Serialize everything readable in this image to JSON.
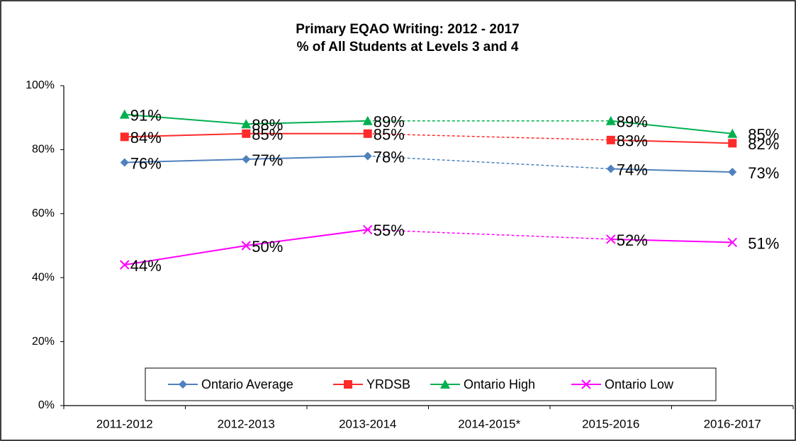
{
  "chart_data": {
    "type": "line",
    "title": "Primary EQAO Writing: 2012 - 2017",
    "subtitle": "% of All Students at Levels 3 and 4",
    "categories": [
      "2011-2012",
      "2012-2013",
      "2013-2014",
      "2014-2015*",
      "2015-2016",
      "2016-2017"
    ],
    "series": [
      {
        "name": "Ontario Average",
        "color": "#4f81bd",
        "marker": "diamond",
        "values": [
          76,
          77,
          78,
          null,
          74,
          73
        ],
        "value_labels": [
          "76%",
          "77%",
          "78%",
          null,
          "74%",
          "73%"
        ]
      },
      {
        "name": "YRDSB",
        "color": "#ff2a2a",
        "marker": "square",
        "values": [
          84,
          85,
          85,
          null,
          83,
          82
        ],
        "value_labels": [
          "84%",
          "85%",
          "85%",
          null,
          "83%",
          "82%"
        ]
      },
      {
        "name": "Ontario High",
        "color": "#00b050",
        "marker": "triangle",
        "values": [
          91,
          88,
          89,
          null,
          89,
          85
        ],
        "value_labels": [
          "91%",
          "88%",
          "89%",
          null,
          "89%",
          "85%"
        ]
      },
      {
        "name": "Ontario Low",
        "color": "#ff00ff",
        "marker": "x",
        "values": [
          44,
          50,
          55,
          null,
          52,
          51
        ],
        "value_labels": [
          "44%",
          "50%",
          "55%",
          null,
          "52%",
          "51%"
        ]
      }
    ],
    "ylim": [
      0,
      100
    ],
    "yticks": [
      {
        "value": 0,
        "label": "0%"
      },
      {
        "value": 20,
        "label": "20%"
      },
      {
        "value": 40,
        "label": "40%"
      },
      {
        "value": 60,
        "label": "60%"
      },
      {
        "value": 80,
        "label": "80%"
      },
      {
        "value": 100,
        "label": "100%"
      }
    ],
    "grid": false,
    "legend": "bottom"
  }
}
